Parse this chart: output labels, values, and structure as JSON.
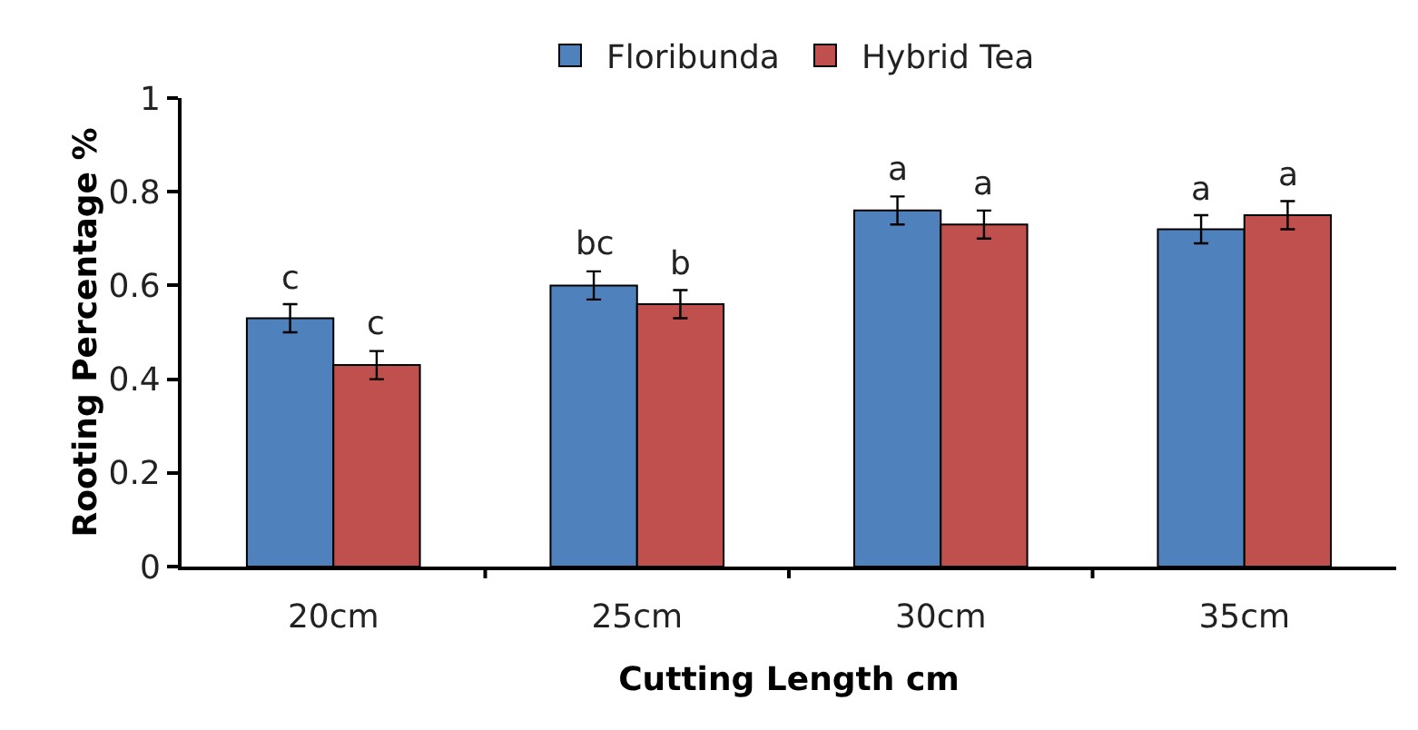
{
  "chart_data": {
    "type": "bar",
    "xlabel": "Cutting Length cm",
    "ylabel": "Rooting Percentage %",
    "categories": [
      "20cm",
      "25cm",
      "30cm",
      "35cm"
    ],
    "series": [
      {
        "name": "Floribunda",
        "color": "#4f81bd",
        "values": [
          0.53,
          0.6,
          0.76,
          0.72
        ],
        "value_labels": [
          "c",
          "bc",
          "a",
          "a"
        ],
        "errors": [
          0.03,
          0.03,
          0.03,
          0.03
        ]
      },
      {
        "name": "Hybrid Tea",
        "color": "#c0504d",
        "values": [
          0.43,
          0.56,
          0.73,
          0.75
        ],
        "value_labels": [
          "c",
          "b",
          "a",
          "a"
        ],
        "errors": [
          0.03,
          0.03,
          0.03,
          0.03
        ]
      }
    ],
    "ylim": [
      0,
      1
    ],
    "yticks": [
      0,
      0.2,
      0.4,
      0.6,
      0.8,
      1
    ],
    "grid": false,
    "legend": "top"
  }
}
